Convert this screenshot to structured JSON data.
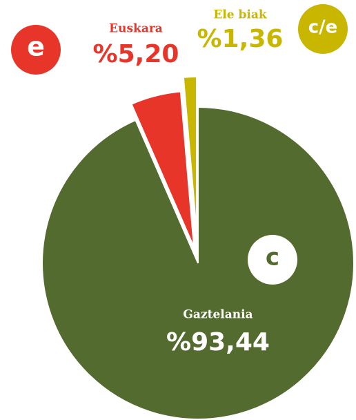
{
  "chart_data": {
    "type": "pie",
    "categories": [
      "Gaztelania",
      "Euskara",
      "Ele biak"
    ],
    "values": [
      93.44,
      5.2,
      1.36
    ],
    "value_labels": [
      "%93,44",
      "%5,20",
      "%1,36"
    ],
    "icons": [
      "c",
      "e",
      "c/e"
    ],
    "colors": [
      "#546b2f",
      "#e8352a",
      "#c9b600"
    ]
  }
}
